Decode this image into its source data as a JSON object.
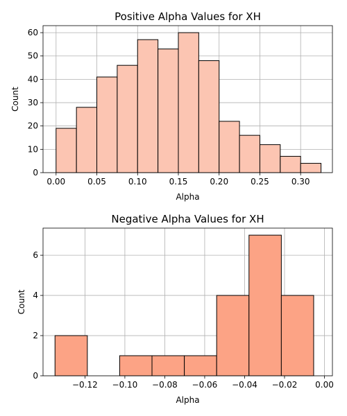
{
  "chart_data": [
    {
      "type": "bar",
      "title": "Positive Alpha Values for XH",
      "xlabel": "Alpha",
      "ylabel": "Count",
      "color": "#fcc5b2",
      "xlim": [
        -0.016,
        0.339
      ],
      "ylim": [
        0,
        63
      ],
      "grid": true,
      "x_ticks": [
        0.0,
        0.05,
        0.1,
        0.15,
        0.2,
        0.25,
        0.3
      ],
      "x_tick_labels": [
        "0.00",
        "0.05",
        "0.10",
        "0.15",
        "0.20",
        "0.25",
        "0.30"
      ],
      "y_ticks": [
        0,
        10,
        20,
        30,
        40,
        50,
        60
      ],
      "y_tick_labels": [
        "0",
        "10",
        "20",
        "30",
        "40",
        "50",
        "60"
      ],
      "bins": [
        {
          "start": 0.0,
          "end": 0.025,
          "value": 19
        },
        {
          "start": 0.025,
          "end": 0.05,
          "value": 28
        },
        {
          "start": 0.05,
          "end": 0.075,
          "value": 41
        },
        {
          "start": 0.075,
          "end": 0.1,
          "value": 46
        },
        {
          "start": 0.1,
          "end": 0.125,
          "value": 57
        },
        {
          "start": 0.125,
          "end": 0.15,
          "value": 53
        },
        {
          "start": 0.15,
          "end": 0.175,
          "value": 60
        },
        {
          "start": 0.175,
          "end": 0.2,
          "value": 48
        },
        {
          "start": 0.2,
          "end": 0.225,
          "value": 22
        },
        {
          "start": 0.225,
          "end": 0.25,
          "value": 16
        },
        {
          "start": 0.25,
          "end": 0.275,
          "value": 12
        },
        {
          "start": 0.275,
          "end": 0.3,
          "value": 7
        },
        {
          "start": 0.3,
          "end": 0.325,
          "value": 4
        }
      ]
    },
    {
      "type": "bar",
      "title": "Negative Alpha Values for XH",
      "xlabel": "Alpha",
      "ylabel": "Count",
      "color": "#fca385",
      "xlim": [
        -0.141,
        0.004
      ],
      "ylim": [
        0,
        7.35
      ],
      "grid": true,
      "x_ticks": [
        -0.12,
        -0.1,
        -0.08,
        -0.06,
        -0.04,
        -0.02,
        0.0
      ],
      "x_tick_labels": [
        "−0.12",
        "−0.10",
        "−0.08",
        "−0.06",
        "−0.04",
        "−0.02",
        "0.00"
      ],
      "y_ticks": [
        0,
        2,
        4,
        6
      ],
      "y_tick_labels": [
        "0",
        "2",
        "4",
        "6"
      ],
      "bins": [
        {
          "start": -0.135,
          "end": -0.1188,
          "value": 2
        },
        {
          "start": -0.1188,
          "end": -0.1026,
          "value": 0
        },
        {
          "start": -0.1026,
          "end": -0.0864,
          "value": 1
        },
        {
          "start": -0.0864,
          "end": -0.0702,
          "value": 1
        },
        {
          "start": -0.0702,
          "end": -0.054,
          "value": 1
        },
        {
          "start": -0.054,
          "end": -0.0378,
          "value": 4
        },
        {
          "start": -0.0378,
          "end": -0.0216,
          "value": 7
        },
        {
          "start": -0.0216,
          "end": -0.0054,
          "value": 4
        }
      ]
    }
  ]
}
